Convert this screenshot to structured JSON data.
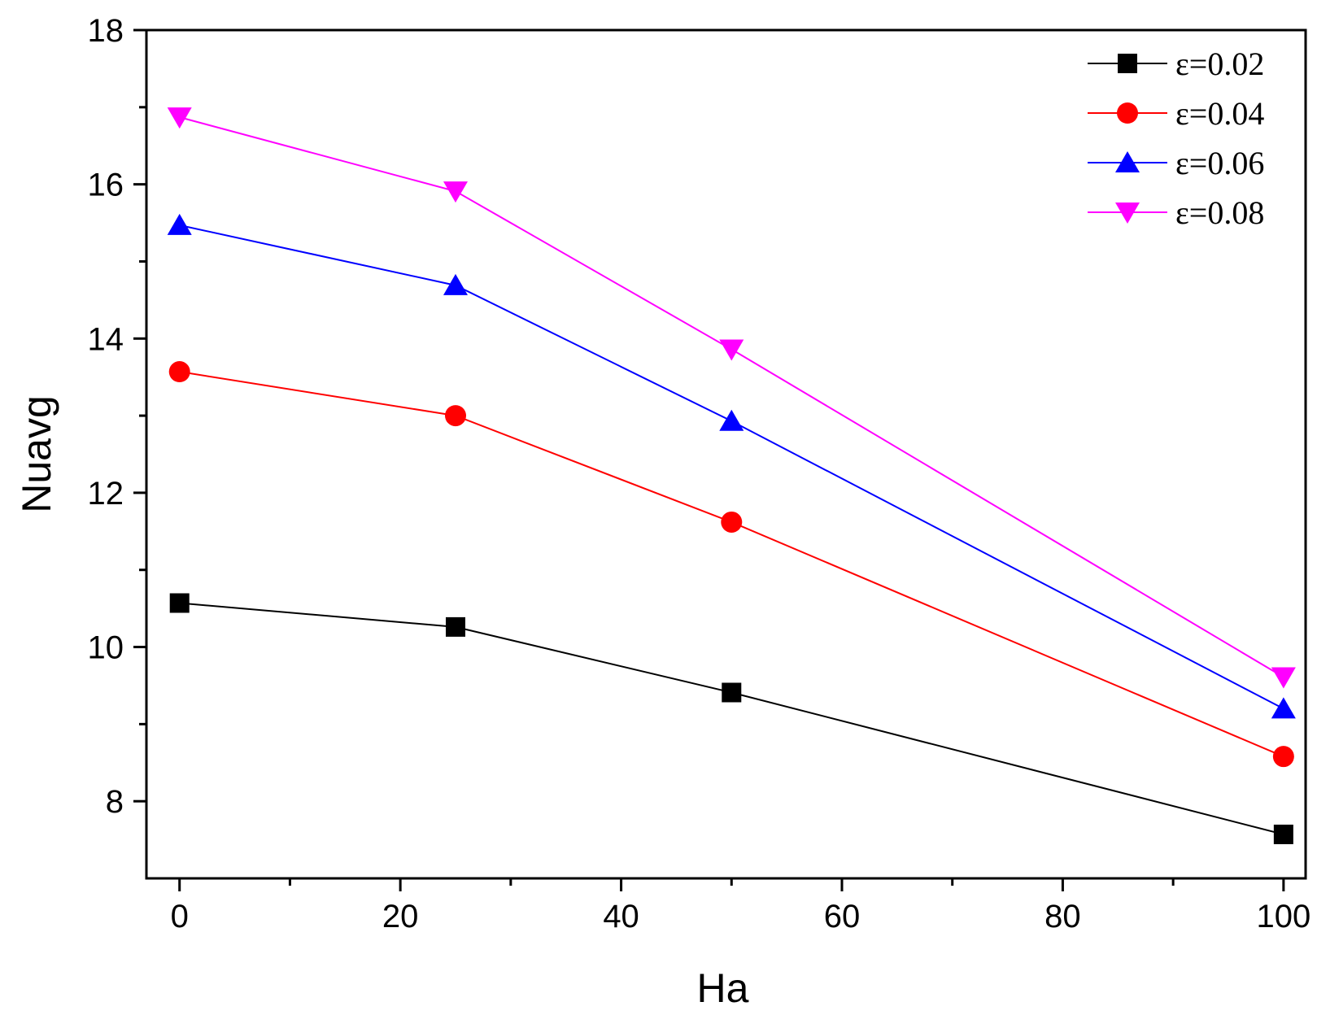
{
  "chart_data": {
    "type": "line",
    "title": "",
    "xlabel": "Ha",
    "ylabel": "Nuavg",
    "xlim": [
      -3,
      102
    ],
    "ylim": [
      7.0,
      18.0
    ],
    "x_ticks": [
      0,
      20,
      40,
      60,
      80,
      100
    ],
    "x_minor_ticks": [
      10,
      30,
      50,
      70,
      90
    ],
    "y_ticks": [
      8,
      10,
      12,
      14,
      16,
      18
    ],
    "y_minor_ticks": [
      9,
      11,
      13,
      15,
      17
    ],
    "grid": false,
    "legend_position": "top-right",
    "x": [
      0,
      25,
      50,
      100
    ],
    "series": [
      {
        "name": "ε=0.02",
        "color": "#000000",
        "marker": "square",
        "values": [
          10.57,
          10.26,
          9.41,
          7.57
        ]
      },
      {
        "name": "ε=0.04",
        "color": "#ff0000",
        "marker": "circle",
        "values": [
          13.57,
          13.0,
          11.62,
          8.58
        ]
      },
      {
        "name": "ε=0.06",
        "color": "#0000ff",
        "marker": "triangle-up",
        "values": [
          15.47,
          14.69,
          12.93,
          9.2
        ]
      },
      {
        "name": "ε=0.08",
        "color": "#ff00ff",
        "marker": "triangle-down",
        "values": [
          16.87,
          15.91,
          13.86,
          9.61
        ]
      }
    ]
  }
}
